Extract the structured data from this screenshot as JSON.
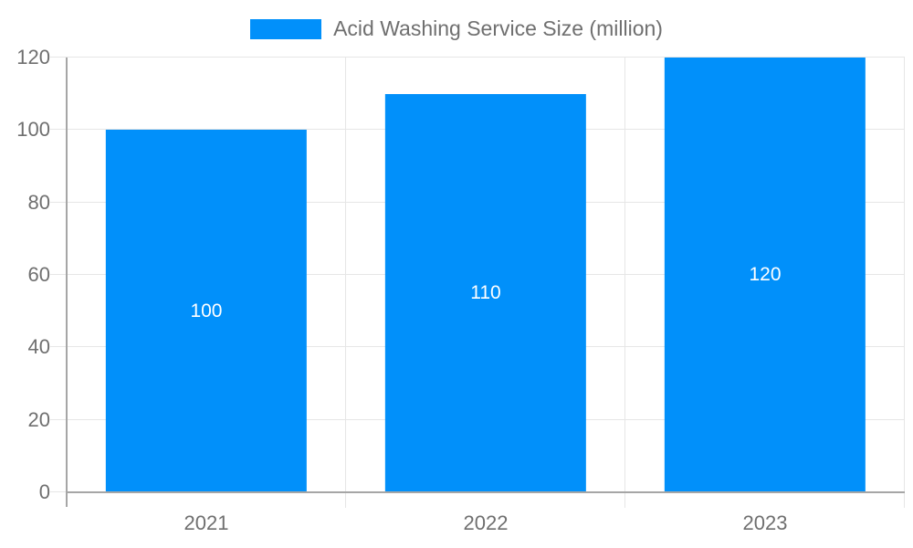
{
  "legend": {
    "label": "Acid Washing Service Size (million)"
  },
  "colors": {
    "bar": "#0190fa",
    "bar_label_text": "#ffffff",
    "grid_line": "#e6e6e6",
    "axis_line": "#a6a6a6",
    "axis_text": "#6f6f6f",
    "background": "#ffffff"
  },
  "chart_data": {
    "type": "bar",
    "categories": [
      "2021",
      "2022",
      "2023"
    ],
    "series": [
      {
        "name": "Acid Washing Service Size (million)",
        "values": [
          100,
          110,
          120
        ]
      }
    ],
    "data_labels": [
      "100",
      "110",
      "120"
    ],
    "title": "",
    "xlabel": "",
    "ylabel": "",
    "ylim": [
      0,
      120
    ],
    "yticks": [
      0,
      20,
      40,
      60,
      80,
      100,
      120
    ],
    "grid": true,
    "legend_position": "top-center"
  }
}
